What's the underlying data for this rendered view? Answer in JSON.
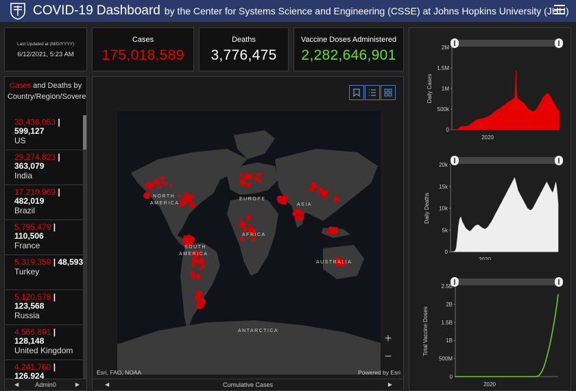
{
  "header": {
    "title": "COVID-19 Dashboard",
    "subtitle": "by the Center for Systems Science and Engineering (CSSE) at Johns Hopkins University (JHU)",
    "logo_icon": "jhu-shield-icon",
    "menu_icon": "hamburger-menu-icon"
  },
  "last_updated": {
    "label": "Last Updated at (M/D/YYYY)",
    "value": "6/12/2021, 5:23 AM"
  },
  "stats": {
    "cases": {
      "label": "Cases",
      "value": "175,018,589",
      "color": "#e60000"
    },
    "deaths": {
      "label": "Deaths",
      "value": "3,776,475",
      "color": "#ffffff"
    },
    "vaccines": {
      "label": "Vaccine Doses Administered",
      "value": "2,282,646,901",
      "color": "#6fdd26"
    }
  },
  "country_list": {
    "header_cases": "Cases",
    "header_and": " and ",
    "header_deaths": "Deaths",
    "header_rest": " by Country/Region/Sovereignty",
    "items": [
      {
        "cases": "33,436,053",
        "deaths": "599,127",
        "name": "US"
      },
      {
        "cases": "29,274,823",
        "deaths": "363,079",
        "name": "India"
      },
      {
        "cases": "17,210,969",
        "deaths": "482,019",
        "name": "Brazil"
      },
      {
        "cases": "5,795,479",
        "deaths": "110,506",
        "name": "France"
      },
      {
        "cases": "5,319,359",
        "deaths": "48,593",
        "name": "Turkey"
      },
      {
        "cases": "5,120,578",
        "deaths": "123,568",
        "name": "Russia"
      },
      {
        "cases": "4,566,891",
        "deaths": "128,148",
        "name": "United Kingdom"
      },
      {
        "cases": "4,241,760",
        "deaths": "126,924",
        "name": "Italy"
      }
    ],
    "footer_label": "Admin0"
  },
  "map": {
    "footer_label": "Cumulative Cases",
    "attribution_left": "Esri, FAO, NOAA",
    "attribution_right": "Powered by Esri",
    "zoom_in": "+",
    "zoom_out": "−",
    "labels": [
      "NORTH",
      "AMERICA",
      "SOUTH",
      "AMERICA",
      "EUROPE",
      "AFRICA",
      "ASIA",
      "AUSTRALIA",
      "ANTARCTICA"
    ],
    "tools": [
      "bookmark-icon",
      "legend-list-icon",
      "basemap-gallery-icon"
    ],
    "marker_color": "#d40000"
  },
  "chart_data": [
    {
      "type": "area",
      "ylabel": "Daily Cases",
      "xlabel": "",
      "x_ticks": [
        "2020"
      ],
      "y_ticks": [
        "0",
        "500k",
        "1M",
        "1.5M",
        "2M"
      ],
      "ylim": [
        0,
        2000000
      ],
      "color": "#e60000",
      "series": [
        {
          "values": [
            0,
            0,
            0,
            1000,
            3000,
            8000,
            30000,
            60000,
            80000,
            85000,
            80000,
            78000,
            80000,
            85000,
            95000,
            110000,
            130000,
            150000,
            170000,
            190000,
            210000,
            230000,
            240000,
            250000,
            255000,
            260000,
            265000,
            270000,
            280000,
            290000,
            300000,
            310000,
            320000,
            340000,
            360000,
            380000,
            400000,
            430000,
            450000,
            470000,
            490000,
            500000,
            520000,
            540000,
            560000,
            580000,
            600000,
            620000,
            650000,
            670000,
            680000,
            700000,
            720000,
            740000,
            760000,
            800000,
            1450000,
            760000,
            740000,
            720000,
            700000,
            680000,
            660000,
            640000,
            600000,
            560000,
            520000,
            500000,
            480000,
            460000,
            450000,
            440000,
            450000,
            470000,
            500000,
            550000,
            600000,
            650000,
            700000,
            750000,
            800000,
            820000,
            850000,
            870000,
            880000,
            850000,
            800000,
            750000,
            700000,
            650000,
            600000,
            550000,
            500000,
            470000,
            450000
          ]
        }
      ]
    },
    {
      "type": "area",
      "ylabel": "Daily Deaths",
      "xlabel": "",
      "x_ticks": [
        "2020"
      ],
      "y_ticks": [
        "0",
        "5k",
        "10k",
        "15k",
        "20k"
      ],
      "ylim": [
        0,
        20000
      ],
      "color": "#eeeeee",
      "series": [
        {
          "values": [
            0,
            0,
            0,
            50,
            200,
            800,
            3000,
            6000,
            7500,
            8000,
            7000,
            6500,
            6000,
            5500,
            5200,
            5000,
            4800,
            4700,
            4900,
            5200,
            5500,
            5800,
            6000,
            6100,
            6200,
            6000,
            5800,
            5600,
            5400,
            5300,
            5200,
            5300,
            5500,
            5800,
            6200,
            6600,
            7000,
            7500,
            8000,
            8500,
            9000,
            9500,
            10000,
            10500,
            11000,
            11500,
            12000,
            12500,
            13000,
            13500,
            14000,
            14500,
            15000,
            15500,
            16000,
            16500,
            17000,
            16000,
            15000,
            14000,
            13500,
            13000,
            12500,
            12000,
            11500,
            11000,
            10500,
            10000,
            9800,
            9600,
            9500,
            9700,
            10000,
            10500,
            11000,
            11500,
            12000,
            12500,
            13000,
            13500,
            14000,
            14500,
            15000,
            15500,
            16000,
            15500,
            15000,
            14500,
            14000,
            13500,
            14000,
            15000,
            16000,
            14000,
            11000
          ]
        }
      ]
    },
    {
      "type": "line",
      "ylabel": "Total Vaccine Doses",
      "xlabel": "",
      "x_ticks": [
        "2020"
      ],
      "y_ticks": [
        "0",
        "500M",
        "1B",
        "1.5B",
        "2B",
        "2.5B"
      ],
      "ylim": [
        0,
        2500000000
      ],
      "color": "#5fd31e",
      "series": [
        {
          "values": [
            0,
            0,
            0,
            0,
            0,
            0,
            0,
            0,
            0,
            0,
            0,
            0,
            0,
            0,
            0,
            0,
            0,
            0,
            0,
            0,
            0,
            0,
            0,
            0,
            0,
            0,
            0,
            0,
            0,
            0,
            0,
            0,
            0,
            0,
            0,
            0,
            0,
            0,
            0,
            0,
            0,
            0,
            0,
            0,
            0,
            0,
            0,
            0,
            0,
            0,
            0,
            0,
            0,
            0,
            0,
            0,
            0,
            0,
            0,
            0,
            0,
            0,
            0,
            0,
            0,
            0,
            0,
            0,
            0,
            0,
            0,
            0,
            0,
            0,
            0,
            5000000,
            20000000,
            50000000,
            90000000,
            140000000,
            200000000,
            280000000,
            370000000,
            470000000,
            580000000,
            700000000,
            830000000,
            970000000,
            1120000000,
            1280000000,
            1450000000,
            1630000000,
            1820000000,
            2030000000,
            2282646901
          ]
        }
      ]
    }
  ]
}
